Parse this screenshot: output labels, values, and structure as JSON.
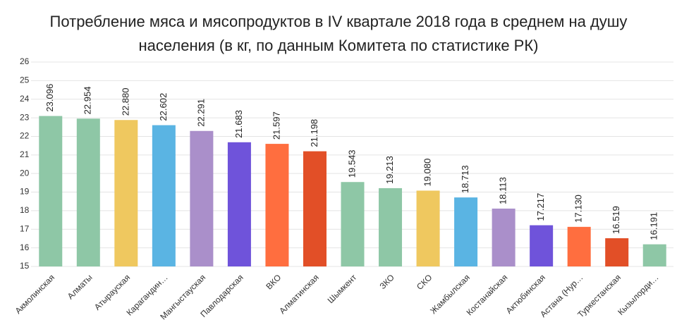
{
  "chart_data": {
    "type": "bar",
    "title": "Потребление мяса и мясопродуктов в IV квартале 2018 года в среднем на душу населения (в кг, по данным Комитета по статистике РК)",
    "categories": [
      "Акмолинская",
      "Алматы",
      "Атырауская",
      "Карагандин…",
      "Мангыстауская",
      "Павлодарская",
      "ВКО",
      "Алматинская",
      "Шымкент",
      "ЗКО",
      "СКО",
      "Жамбылская",
      "Костанайская",
      "Актюбинская",
      "Астана (Нур…",
      "Туркестанская",
      "Кызылорди…"
    ],
    "values": [
      23.096,
      22.954,
      22.88,
      22.602,
      22.291,
      21.683,
      21.597,
      21.198,
      19.543,
      19.213,
      19.08,
      18.713,
      18.113,
      17.217,
      17.13,
      16.519,
      16.191
    ],
    "value_labels": [
      "23.096",
      "22.954",
      "22.880",
      "22.602",
      "22.291",
      "21.683",
      "21.597",
      "21.198",
      "19.543",
      "19.213",
      "19.080",
      "18.713",
      "18.113",
      "17.217",
      "17.130",
      "16.519",
      "16.191"
    ],
    "colors": [
      "#8ec7a6",
      "#8ec7a6",
      "#efc85f",
      "#5ab4e3",
      "#aa8fca",
      "#6f53da",
      "#ff6e3f",
      "#e24f27",
      "#8ec7a6",
      "#8ec7a6",
      "#efc85f",
      "#5ab4e3",
      "#aa8fca",
      "#6f53da",
      "#ff6e3f",
      "#e24f27",
      "#8ec7a6"
    ],
    "ylim": [
      15,
      26
    ],
    "yticks": [
      15,
      16,
      17,
      18,
      19,
      20,
      21,
      22,
      23,
      24,
      25,
      26
    ],
    "grid": true
  }
}
